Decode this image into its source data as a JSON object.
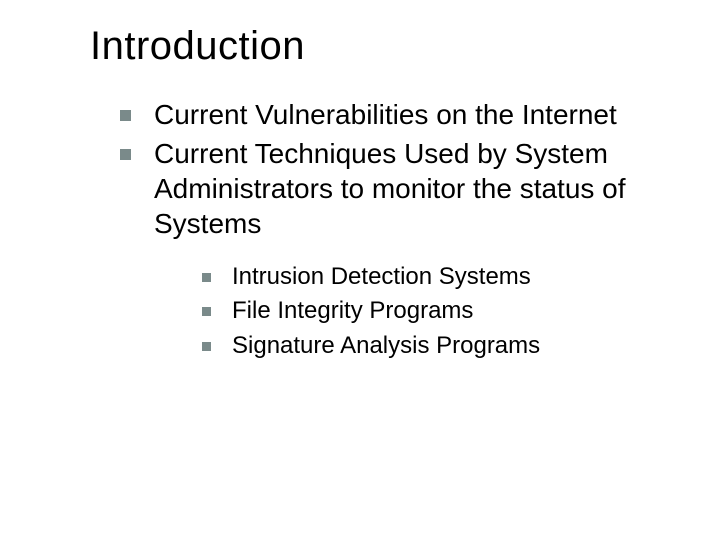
{
  "slide": {
    "title": "Introduction",
    "title_fontsize": 40,
    "background_color": "#ffffff",
    "text_color": "#000000",
    "bullet_color": "#7a8a8a",
    "font_family": "Verdana",
    "bullets_level1": [
      {
        "text": "Current Vulnerabilities on the Internet"
      },
      {
        "text": "Current Techniques Used by System Administrators to monitor the status of Systems"
      }
    ],
    "bullets_level2": [
      {
        "text": "Intrusion Detection Systems"
      },
      {
        "text": "File Integrity Programs"
      },
      {
        "text": "Signature Analysis Programs"
      }
    ],
    "level1_fontsize": 28,
    "level2_fontsize": 24
  }
}
